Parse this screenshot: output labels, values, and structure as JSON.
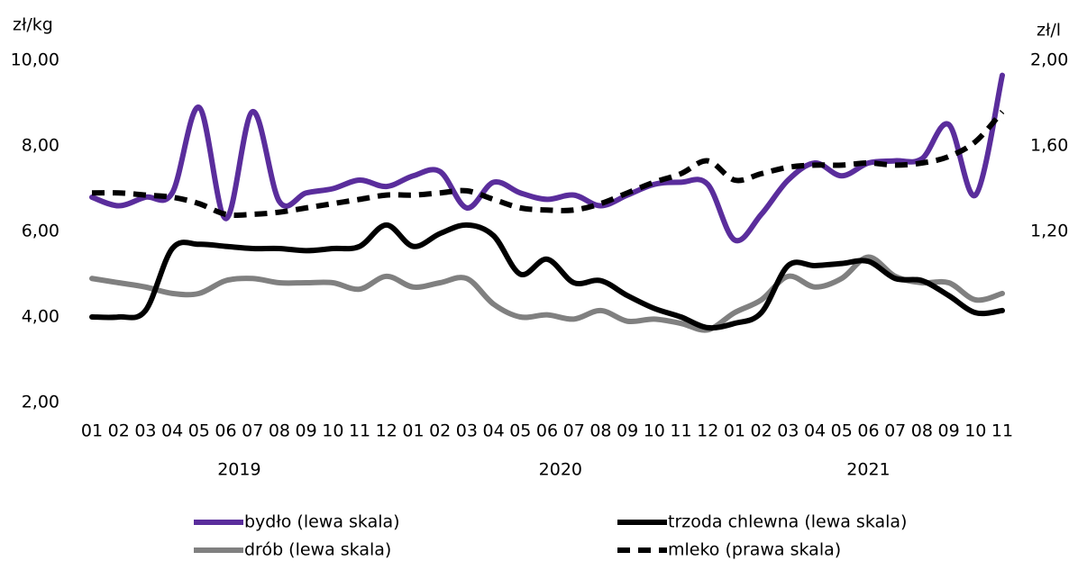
{
  "chart_data": {
    "type": "line",
    "ylabel": "zł/kg",
    "y2label": "zł/l",
    "categories": [
      "01",
      "02",
      "03",
      "04",
      "05",
      "06",
      "07",
      "08",
      "09",
      "10",
      "11",
      "12",
      "01",
      "02",
      "03",
      "04",
      "05",
      "06",
      "07",
      "08",
      "09",
      "10",
      "11",
      "12",
      "01",
      "02",
      "03",
      "04",
      "05",
      "06",
      "07",
      "08",
      "09",
      "10",
      "11"
    ],
    "years": [
      "2019",
      "2020",
      "2021"
    ],
    "ylim": [
      2,
      10
    ],
    "yticks": [
      {
        "value": 2,
        "label": "2,00"
      },
      {
        "value": 4,
        "label": "4,00"
      },
      {
        "value": 6,
        "label": "6,00"
      },
      {
        "value": 8,
        "label": "8,00"
      },
      {
        "value": 10,
        "label": "10,00"
      }
    ],
    "y2lim": [
      0.4,
      2.0
    ],
    "y2ticks": [
      {
        "value": 1.2,
        "label": "1,20"
      },
      {
        "value": 1.6,
        "label": "1,60"
      },
      {
        "value": 2.0,
        "label": "2,00"
      }
    ],
    "grid": false,
    "series": [
      {
        "name": "bydło (lewa skala)",
        "color": "#5a2d9c",
        "dashed": false,
        "values": [
          6.8,
          6.6,
          6.8,
          6.9,
          8.9,
          6.3,
          8.8,
          6.7,
          6.9,
          7.0,
          7.2,
          7.05,
          7.3,
          7.4,
          6.55,
          7.15,
          6.9,
          6.75,
          6.85,
          6.6,
          6.85,
          7.1,
          7.15,
          7.1,
          5.8,
          6.4,
          7.2,
          7.6,
          7.3,
          7.6,
          7.65,
          7.7,
          8.5,
          6.85,
          9.65
        ]
      },
      {
        "name": "trzoda chlewna (lewa skala)",
        "color": "#000000",
        "dashed": false,
        "values": [
          4.0,
          4.0,
          4.15,
          5.6,
          5.7,
          5.65,
          5.6,
          5.6,
          5.55,
          5.6,
          5.65,
          6.15,
          5.65,
          5.95,
          6.15,
          5.9,
          5.0,
          5.35,
          4.8,
          4.85,
          4.5,
          4.2,
          4.0,
          3.75,
          3.85,
          4.1,
          5.2,
          5.2,
          5.25,
          5.3,
          4.9,
          4.85,
          4.5,
          4.1,
          4.15
        ]
      },
      {
        "name": "drób (lewa skala)",
        "color": "#808080",
        "dashed": false,
        "values": [
          4.9,
          4.8,
          4.7,
          4.55,
          4.55,
          4.85,
          4.9,
          4.8,
          4.8,
          4.8,
          4.65,
          4.95,
          4.7,
          4.8,
          4.9,
          4.3,
          4.0,
          4.05,
          3.95,
          4.15,
          3.9,
          3.95,
          3.85,
          3.7,
          4.1,
          4.4,
          4.95,
          4.7,
          4.9,
          5.4,
          4.95,
          4.8,
          4.8,
          4.4,
          4.55
        ]
      },
      {
        "name": "mleko (prawa skala)",
        "color": "#000000",
        "dashed": true,
        "axis": "y2",
        "values": [
          1.38,
          1.38,
          1.37,
          1.36,
          1.33,
          1.28,
          1.28,
          1.29,
          1.31,
          1.33,
          1.35,
          1.37,
          1.37,
          1.38,
          1.39,
          1.35,
          1.31,
          1.3,
          1.3,
          1.33,
          1.38,
          1.43,
          1.47,
          1.53,
          1.44,
          1.47,
          1.5,
          1.51,
          1.51,
          1.52,
          1.51,
          1.52,
          1.55,
          1.62,
          1.76
        ]
      }
    ]
  }
}
